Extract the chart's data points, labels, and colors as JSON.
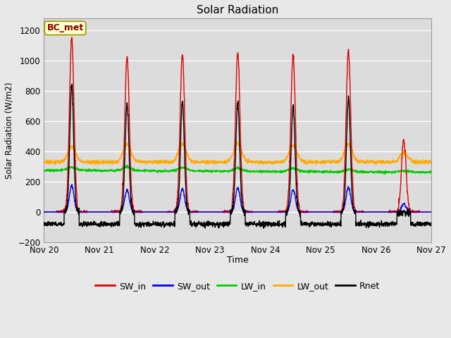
{
  "title": "Solar Radiation",
  "xlabel": "Time",
  "ylabel": "Solar Radiation (W/m2)",
  "ylim": [
    -200,
    1280
  ],
  "yticks": [
    -200,
    0,
    200,
    400,
    600,
    800,
    1000,
    1200
  ],
  "legend_label": "BC_met",
  "series_names": [
    "SW_in",
    "SW_out",
    "LW_in",
    "LW_out",
    "Rnet"
  ],
  "series_colors": [
    "#dd0000",
    "#0000ee",
    "#00cc00",
    "#ffaa00",
    "#000000"
  ],
  "bg_color": "#e8e8e8",
  "n_days": 7,
  "start_day": 20,
  "total_points": 2016,
  "lw_in_base": 275,
  "lw_out_base": 330,
  "sw_in_peaks": [
    1150,
    1025,
    1040,
    1055,
    1040,
    1065,
    480
  ],
  "sw_out_peaks": [
    175,
    145,
    155,
    160,
    150,
    165,
    55
  ],
  "rnet_night": -80,
  "rnet_peaks": [
    830,
    715,
    725,
    725,
    700,
    745,
    0
  ],
  "lw_out_day_peaks": [
    100,
    120,
    120,
    125,
    110,
    120,
    60
  ],
  "lw_in_day_peaks": [
    20,
    25,
    22,
    20,
    22,
    15,
    10
  ]
}
